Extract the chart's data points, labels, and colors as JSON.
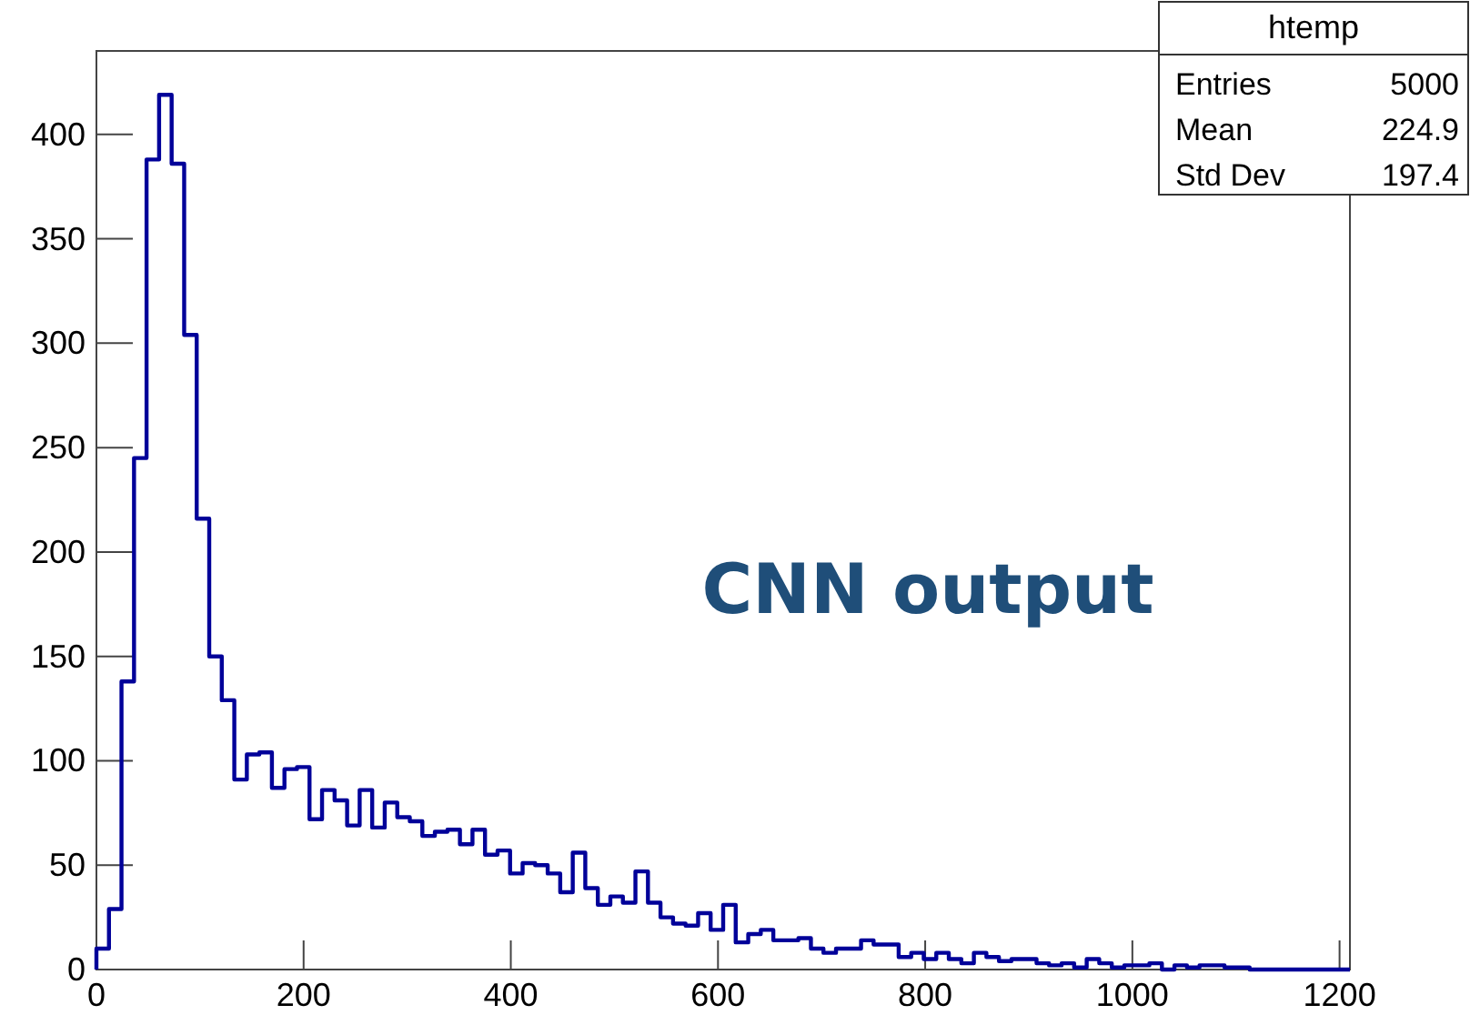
{
  "chart_data": {
    "type": "histogram",
    "bins": [
      0,
      12.1,
      24.2,
      36.3,
      48.4,
      60.5,
      72.6,
      84.7,
      96.8,
      108.9,
      121,
      133.1,
      145.2,
      157.3,
      169.4,
      181.5,
      193.6,
      205.7,
      217.8,
      229.9,
      242,
      254.1,
      266.2,
      278.3,
      290.4,
      302.5,
      314.6,
      326.7,
      338.8,
      350.9,
      363,
      375.1,
      387.2,
      399.3,
      411.4,
      423.5,
      435.6,
      447.7,
      459.8,
      471.9,
      484,
      496.1,
      508.2,
      520.3,
      532.4,
      544.5,
      556.6,
      568.7,
      580.8,
      592.9,
      605,
      617.1,
      629.2,
      641.3,
      653.4,
      665.5,
      677.6,
      689.7,
      701.8,
      713.9,
      726,
      738.1,
      750.2,
      762.3,
      774.4,
      786.5,
      798.6,
      810.7,
      822.8,
      834.9,
      847,
      859.1,
      871.2,
      883.3,
      895.4,
      907.5,
      919.6,
      931.7,
      943.8,
      955.9,
      968,
      980.1,
      992.2,
      1004.3,
      1016.4,
      1028.5,
      1040.6,
      1052.7,
      1064.8,
      1076.9,
      1089,
      1101.1,
      1113.2,
      1125.3,
      1137.4,
      1149.5,
      1161.6,
      1173.7,
      1185.8,
      1197.9,
      1210
    ],
    "values": [
      10,
      29,
      138,
      245,
      388,
      419,
      386,
      304,
      216,
      150,
      129,
      91,
      103,
      104,
      87,
      96,
      97,
      72,
      86,
      81,
      69,
      86,
      68,
      80,
      73,
      71,
      64,
      66,
      67,
      60,
      67,
      55,
      57,
      46,
      51,
      50,
      46,
      37,
      56,
      39,
      31,
      35,
      32,
      47,
      32,
      25,
      22,
      21,
      27,
      19,
      31,
      13,
      17,
      19,
      14,
      14,
      15,
      10,
      8,
      10,
      10,
      14,
      12,
      12,
      6,
      8,
      5,
      8,
      5,
      3,
      8,
      6,
      4,
      5,
      5,
      3,
      2,
      3,
      1,
      5,
      3,
      1,
      2,
      2,
      3,
      0,
      2,
      1,
      2,
      2,
      1,
      1,
      0,
      0,
      0,
      0,
      0,
      0,
      0,
      0
    ],
    "color": "#000099",
    "xlim": [
      0,
      1210
    ],
    "ylim": [
      0,
      440
    ],
    "xticks": [
      0,
      200,
      400,
      600,
      800,
      1000,
      1200
    ],
    "yticks": [
      0,
      50,
      100,
      150,
      200,
      250,
      300,
      350,
      400
    ],
    "annotations": [
      "CNN output",
      "htemp",
      "Entries",
      "5000",
      "Mean",
      "224.9",
      "Std Dev",
      "197.4"
    ]
  }
}
